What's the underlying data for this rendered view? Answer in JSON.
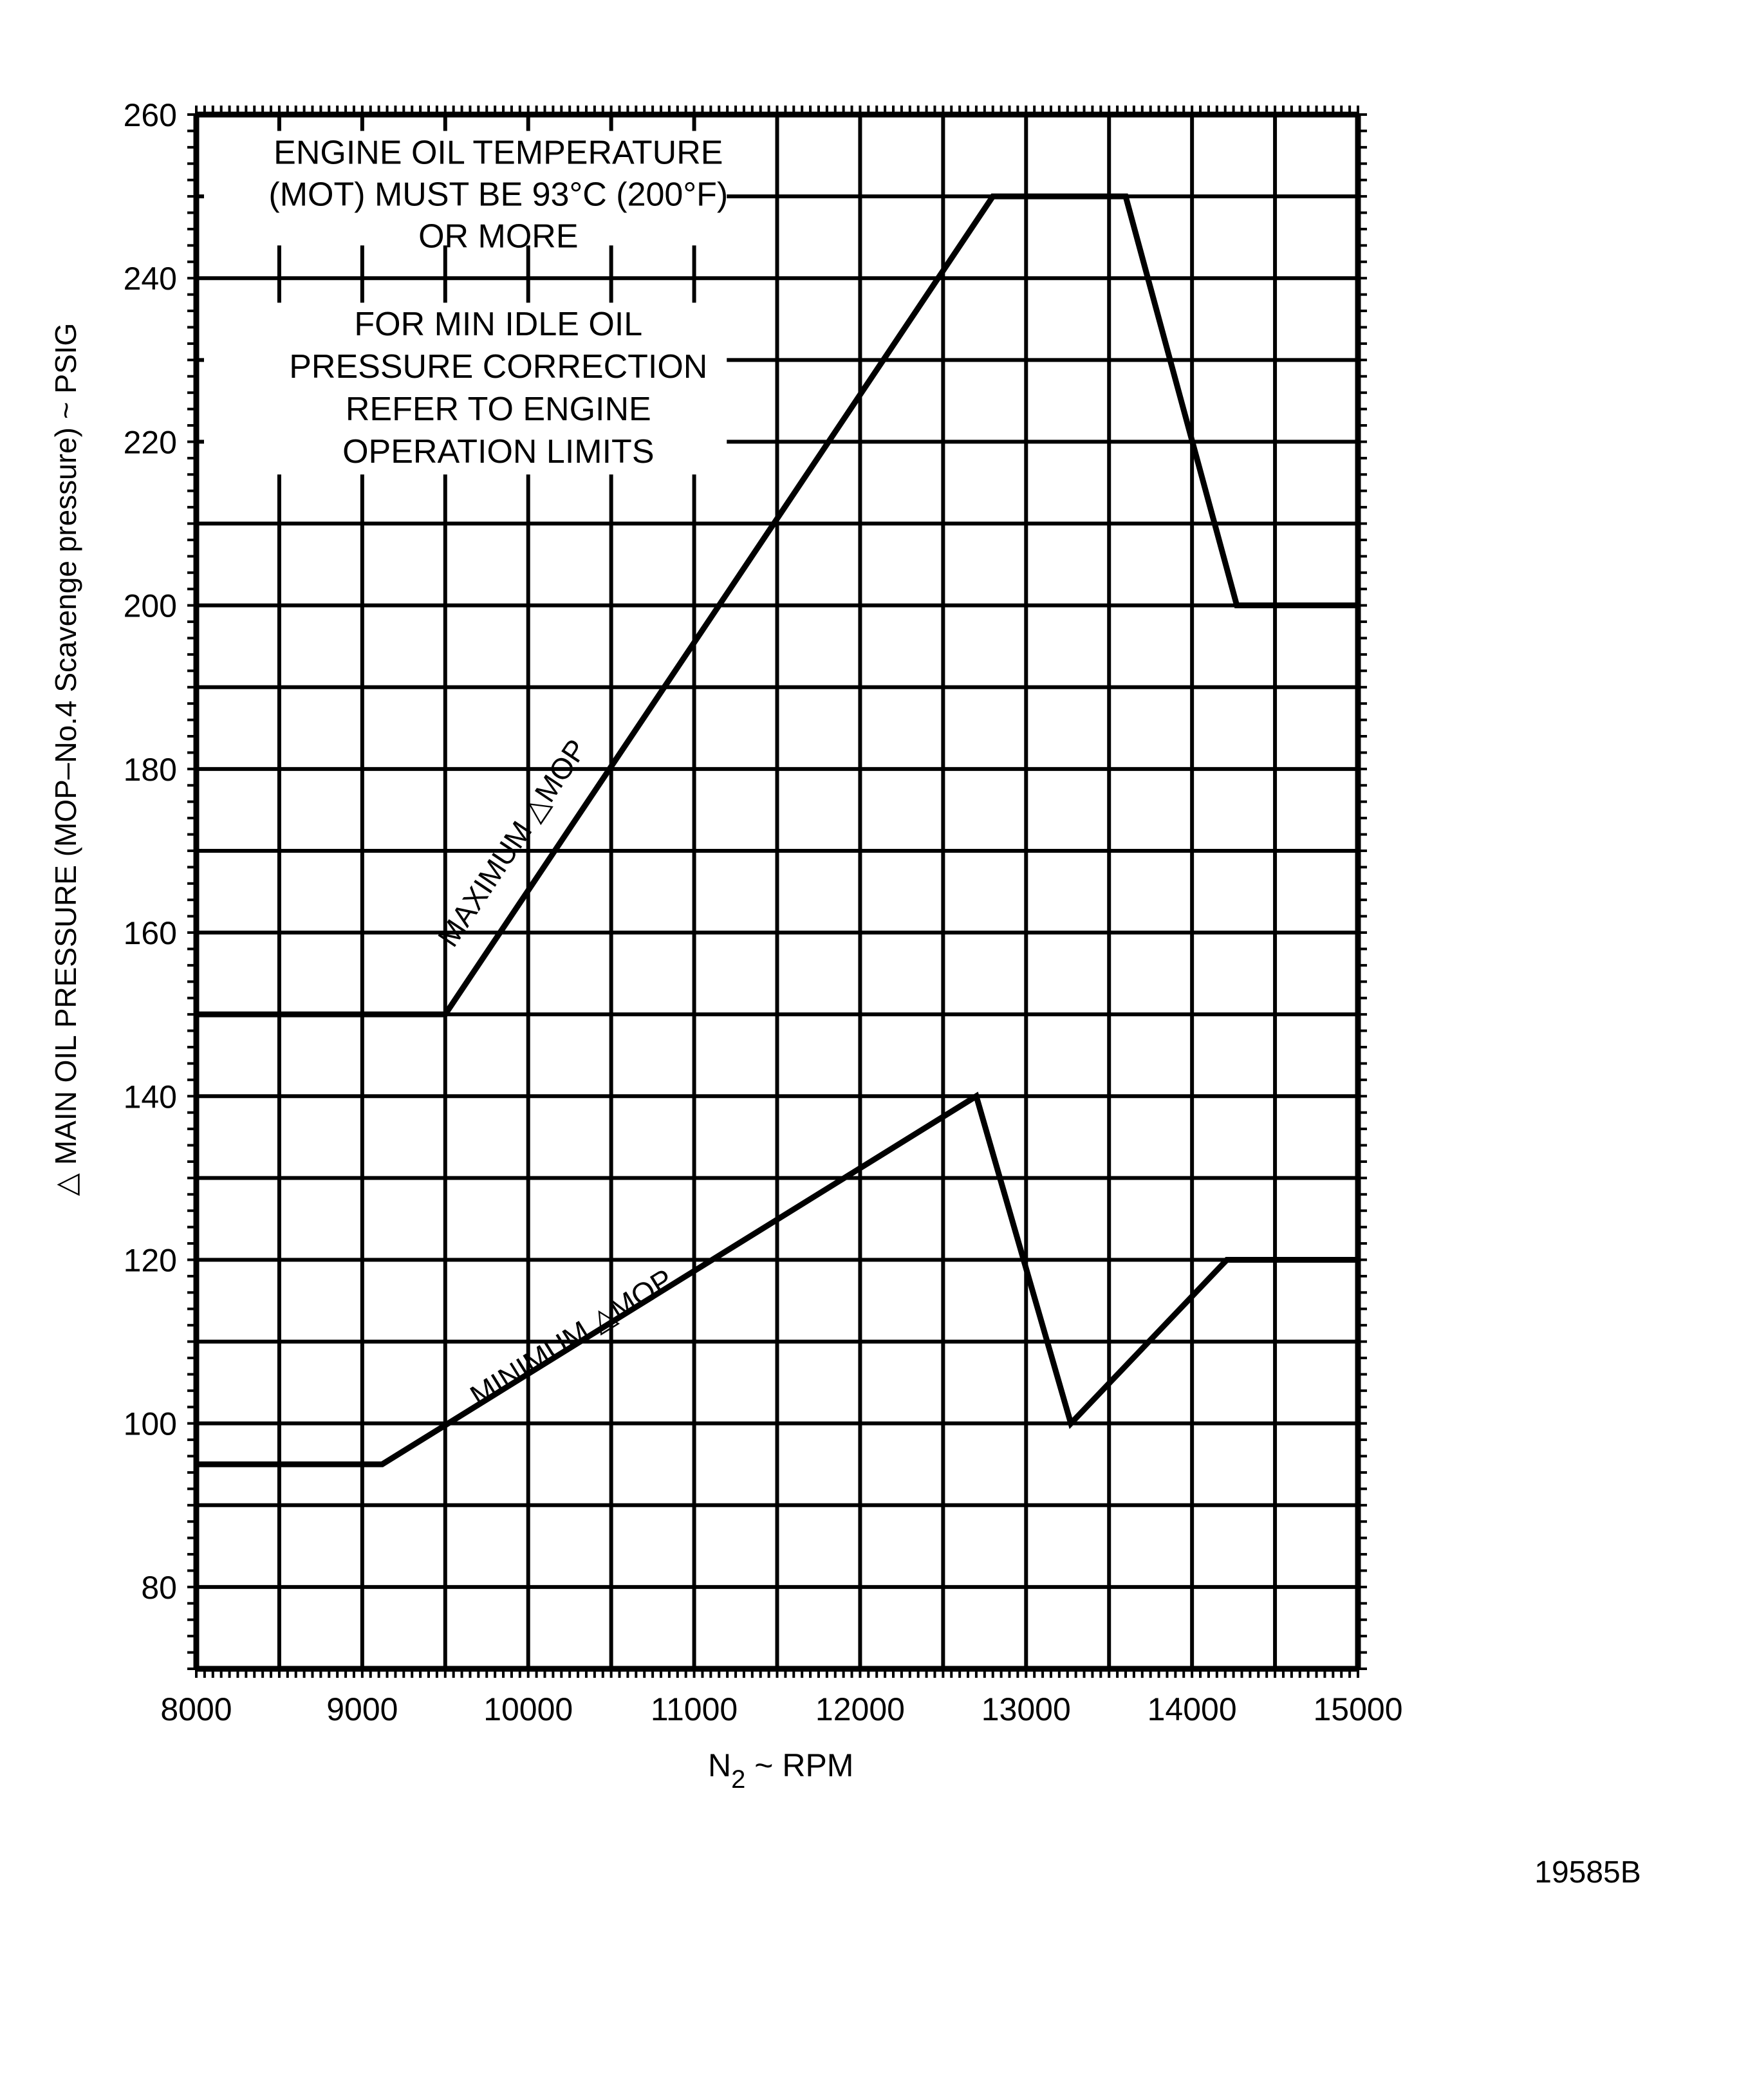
{
  "chart_data": {
    "type": "line",
    "title": "",
    "xlabel": "N2 ~ RPM",
    "xlabel_main": "N",
    "xlabel_sub": "2",
    "xlabel_rest": " ~ RPM",
    "ylabel": "△ MAIN OIL PRESSURE (MOP–No.4 Scavenge pressure) ~ PSIG",
    "xlim": [
      8000,
      15000
    ],
    "ylim": [
      70,
      260
    ],
    "x_ticks": [
      8000,
      9000,
      10000,
      11000,
      12000,
      13000,
      14000,
      15000
    ],
    "x_tick_labels": [
      "8000",
      "9000",
      "10000",
      "11000",
      "12000",
      "13000",
      "14000",
      "15000"
    ],
    "y_ticks": [
      80,
      100,
      120,
      140,
      160,
      180,
      200,
      220,
      240,
      260
    ],
    "y_tick_labels": [
      "80",
      "100",
      "120",
      "140",
      "160",
      "180",
      "200",
      "220",
      "240",
      "260"
    ],
    "grid": true,
    "series": [
      {
        "name": "MAXIMUM △MOP",
        "x": [
          8000,
          9500,
          12800,
          13600,
          14270,
          15000
        ],
        "y": [
          150,
          150,
          250,
          250,
          200,
          200
        ]
      },
      {
        "name": "MINIMUM △MOP",
        "x": [
          8000,
          9120,
          12700,
          13270,
          14210,
          15000
        ],
        "y": [
          95,
          95,
          140,
          100,
          120,
          120
        ]
      }
    ],
    "annotations": [
      [
        "ENGINE OIL TEMPERATURE",
        "(MOT) MUST BE 93°C (200°F)",
        "OR MORE"
      ],
      [
        "FOR MIN IDLE OIL",
        "PRESSURE CORRECTION",
        "REFER TO ENGINE",
        "OPERATION LIMITS"
      ]
    ],
    "figure_id": "19585B"
  }
}
